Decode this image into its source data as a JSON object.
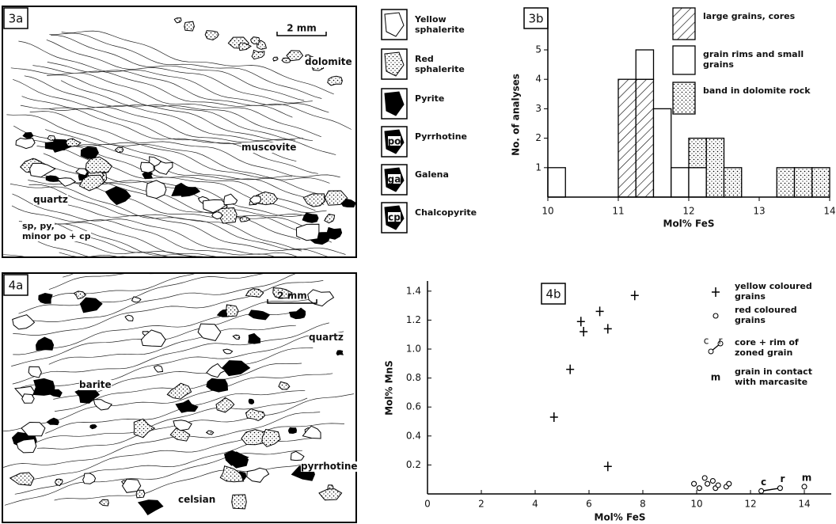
{
  "figure_3a": {
    "panel_label": "3a",
    "scale_bar": "2 mm",
    "labels": [
      "dolomite",
      "muscovite",
      "quartz"
    ],
    "ore_note": [
      "sp, py,",
      "minor po + cp"
    ]
  },
  "mineral_legend": [
    {
      "name": "Yellow sphalerite"
    },
    {
      "name": "Red sphalerite"
    },
    {
      "name": "Pyrite"
    },
    {
      "name": "Pyrrhotine",
      "symbol": "po"
    },
    {
      "name": "Galena",
      "symbol": "ga"
    },
    {
      "name": "Chalcopyrite",
      "symbol": "cp"
    }
  ],
  "figure_4a": {
    "panel_label": "4a",
    "scale_bar": "2 mm",
    "labels": [
      "quartz",
      "barite",
      "pyrrhotine",
      "celsian"
    ]
  },
  "chart_data": [
    {
      "type": "histogram",
      "panel_label": "3b",
      "x_label": "Mol% FeS",
      "y_label": "No. of analyses",
      "bins": [
        10,
        10.25,
        10.5,
        10.75,
        11,
        11.25,
        11.5,
        11.75,
        12,
        12.25,
        12.5,
        12.75,
        13,
        13.25,
        13.5,
        13.75,
        14
      ],
      "series": [
        {
          "name": "large grains, cores",
          "color": "#000000",
          "fill": "hatch",
          "values": [
            0,
            0,
            0,
            0,
            4,
            4,
            0,
            0,
            0,
            0,
            0,
            0,
            0,
            0,
            0,
            0
          ]
        },
        {
          "name": "grain rims and small grains",
          "color": "#000000",
          "fill": "none",
          "values": [
            1,
            0,
            0,
            0,
            0,
            1,
            3,
            1,
            1,
            0,
            0,
            0,
            0,
            0,
            0,
            0
          ]
        },
        {
          "name": "band in dolomite rock",
          "color": "#000000",
          "fill": "dots",
          "values": [
            0,
            0,
            0,
            0,
            0,
            0,
            0,
            0,
            1,
            2,
            1,
            0,
            0,
            1,
            1,
            1
          ]
        }
      ],
      "xlim": [
        10,
        14
      ],
      "xticks": [
        10,
        11,
        12,
        13,
        14
      ],
      "ylim": [
        0,
        5
      ],
      "yticks": [
        1,
        2,
        3,
        4,
        5
      ],
      "legend": "top-right"
    },
    {
      "type": "scatter",
      "panel_label": "4b",
      "x_label": "Mol% FeS",
      "y_label": "Mol% MnS",
      "series": [
        {
          "name": "yellow coloured grains",
          "marker": "plus",
          "color": "#000000",
          "x": [
            4.7,
            5.3,
            5.7,
            5.8,
            6.4,
            6.7,
            7.7,
            6.7
          ],
          "y": [
            0.53,
            0.86,
            1.19,
            1.12,
            1.26,
            1.14,
            1.37,
            0.19
          ]
        },
        {
          "name": "red coloured grains",
          "marker": "circle",
          "color": "#000000",
          "x": [
            9.9,
            10.1,
            10.3,
            10.4,
            10.6,
            10.7,
            10.8,
            11.1,
            11.2
          ],
          "y": [
            0.07,
            0.04,
            0.11,
            0.07,
            0.09,
            0.04,
            0.06,
            0.05,
            0.07
          ]
        },
        {
          "name": "core + rim of zoned grain",
          "marker": "circle",
          "connected": true,
          "color": "#000000",
          "x": [
            12.4,
            13.1
          ],
          "y": [
            0.02,
            0.04
          ],
          "point_labels": [
            "c",
            "r"
          ]
        },
        {
          "name": "grain in contact with marcasite",
          "marker": "circle",
          "color": "#000000",
          "x": [
            14
          ],
          "y": [
            0.05
          ],
          "point_labels": [
            "m"
          ]
        }
      ],
      "xlim": [
        0,
        15
      ],
      "xticks": [
        0,
        2,
        4,
        6,
        8,
        10,
        12,
        14
      ],
      "ylim": [
        0,
        1.47
      ],
      "yticks": [
        0.2,
        0.4,
        0.6,
        0.8,
        {
          "value": 1,
          "label": "1.0"
        },
        1.2,
        1.4
      ],
      "legend": "top-right"
    }
  ]
}
